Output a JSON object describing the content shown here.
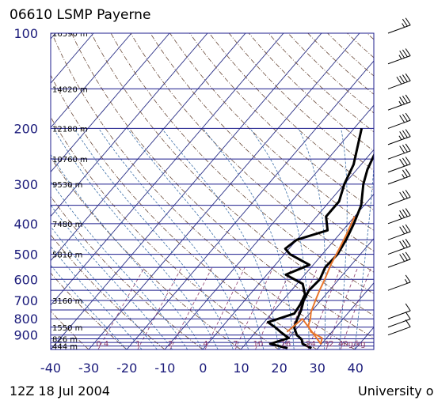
{
  "chart_data": {
    "type": "line",
    "title": "06610 LSMP Payerne",
    "footer_left": "12Z 18 Jul 2004",
    "footer_right": "University o",
    "pressure_ticks": [
      "100",
      "200",
      "300",
      "400",
      "500",
      "600",
      "700",
      "800",
      "900"
    ],
    "temp_ticks": [
      "-40",
      "-30",
      "-20",
      "-10",
      "0",
      "10",
      "20",
      "30",
      "40"
    ],
    "xlim": [
      -40,
      40
    ],
    "ylim_hpa": [
      100,
      1000
    ],
    "pressure_levels": [
      100,
      150,
      200,
      250,
      300,
      350,
      400,
      450,
      500,
      550,
      600,
      650,
      700,
      750,
      800,
      850,
      900,
      925,
      950,
      975,
      1000
    ],
    "height_labels": [
      {
        "p": 100,
        "text": "16590 m"
      },
      {
        "p": 150,
        "text": "14020 m"
      },
      {
        "p": 200,
        "text": "12180 m"
      },
      {
        "p": 250,
        "text": "10760 m"
      },
      {
        "p": 300,
        "text": "9530 m"
      },
      {
        "p": 400,
        "text": "7480 m"
      },
      {
        "p": 500,
        "text": "5810 m"
      },
      {
        "p": 700,
        "text": "3160 m"
      },
      {
        "p": 850,
        "text": "1550 m"
      },
      {
        "p": 925,
        "text": "826 m"
      },
      {
        "p": 975,
        "text": "444 m"
      }
    ],
    "mixing_ratio_labels": [
      "0.4",
      "1",
      "2",
      "4",
      "7",
      "10",
      "16",
      "24",
      "32",
      "40g/kg"
    ],
    "series": [
      {
        "name": "",
        "color": "#000000",
        "values": [
          {
            "p": 100,
            "t": 25.8
          },
          {
            "p": 110,
            "t": 25.2
          },
          {
            "p": 120,
            "t": 21.4
          },
          {
            "p": 140,
            "t": 18.0
          },
          {
            "p": 160,
            "t": 16.5
          },
          {
            "p": 185,
            "t": 8.0
          },
          {
            "p": 200,
            "t": -1.0
          },
          {
            "p": 230,
            "t": 0.5
          },
          {
            "p": 270,
            "t": 2.8
          },
          {
            "p": 300,
            "t": 5.0
          },
          {
            "p": 350,
            "t": 9.2
          },
          {
            "p": 400,
            "t": 11.4
          },
          {
            "p": 450,
            "t": 13.0
          },
          {
            "p": 500,
            "t": 14.0
          },
          {
            "p": 550,
            "t": 13.7
          },
          {
            "p": 600,
            "t": 15.0
          },
          {
            "p": 650,
            "t": 14.6
          },
          {
            "p": 700,
            "t": 15.5
          },
          {
            "p": 750,
            "t": 17.0
          },
          {
            "p": 800,
            "t": 18.0
          },
          {
            "p": 850,
            "t": 19.0
          },
          {
            "p": 900,
            "t": 21.5
          },
          {
            "p": 930,
            "t": 23.8
          },
          {
            "p": 960,
            "t": 25.0
          },
          {
            "p": 990,
            "t": 28.3
          }
        ]
      },
      {
        "name": "",
        "color": "#000000",
        "values": [
          {
            "p": 200,
            "t": -8.0
          },
          {
            "p": 260,
            "t": -2.0
          },
          {
            "p": 300,
            "t": 0.0
          },
          {
            "p": 340,
            "t": 2.5
          },
          {
            "p": 380,
            "t": 2.5
          },
          {
            "p": 420,
            "t": 6.0
          },
          {
            "p": 450,
            "t": 0.0
          },
          {
            "p": 480,
            "t": -1.0
          },
          {
            "p": 500,
            "t": 1.5
          },
          {
            "p": 540,
            "t": 9.0
          },
          {
            "p": 580,
            "t": 5.0
          },
          {
            "p": 620,
            "t": 11.5
          },
          {
            "p": 670,
            "t": 14.5
          },
          {
            "p": 720,
            "t": 15.5
          },
          {
            "p": 770,
            "t": 16.0
          },
          {
            "p": 820,
            "t": 11.0
          },
          {
            "p": 850,
            "t": 14.0
          },
          {
            "p": 880,
            "t": 16.5
          },
          {
            "p": 920,
            "t": 20.0
          },
          {
            "p": 960,
            "t": 16.5
          },
          {
            "p": 990,
            "t": 22.0
          }
        ]
      },
      {
        "name": "",
        "color": "#e8762c",
        "values": [
          {
            "p": 380,
            "t": 10.0
          },
          {
            "p": 430,
            "t": 11.8
          },
          {
            "p": 480,
            "t": 13.2
          },
          {
            "p": 540,
            "t": 14.6
          },
          {
            "p": 600,
            "t": 16.3
          },
          {
            "p": 650,
            "t": 17.4
          },
          {
            "p": 700,
            "t": 18.6
          },
          {
            "p": 760,
            "t": 20.0
          },
          {
            "p": 800,
            "t": 21.4
          },
          {
            "p": 840,
            "t": 22.4
          },
          {
            "p": 880,
            "t": 24.5
          },
          {
            "p": 920,
            "t": 28.8
          },
          {
            "p": 960,
            "t": 29.8
          },
          {
            "p": 800,
            "t": 19.3
          },
          {
            "p": 880,
            "t": 18.2
          }
        ]
      }
    ],
    "wind_barbs": [
      {
        "p": 100,
        "dir": 250,
        "kt": 25
      },
      {
        "p": 125,
        "dir": 250,
        "kt": 35
      },
      {
        "p": 150,
        "dir": 250,
        "kt": 40
      },
      {
        "p": 175,
        "dir": 255,
        "kt": 35
      },
      {
        "p": 200,
        "dir": 255,
        "kt": 30
      },
      {
        "p": 225,
        "dir": 250,
        "kt": 35
      },
      {
        "p": 250,
        "dir": 250,
        "kt": 30
      },
      {
        "p": 275,
        "dir": 250,
        "kt": 30
      },
      {
        "p": 300,
        "dir": 255,
        "kt": 25
      },
      {
        "p": 350,
        "dir": 250,
        "kt": 30
      },
      {
        "p": 400,
        "dir": 255,
        "kt": 35
      },
      {
        "p": 450,
        "dir": 250,
        "kt": 30
      },
      {
        "p": 500,
        "dir": 255,
        "kt": 30
      },
      {
        "p": 550,
        "dir": 250,
        "kt": 30
      },
      {
        "p": 650,
        "dir": 240,
        "kt": 15
      },
      {
        "p": 800,
        "dir": 220,
        "kt": 10
      },
      {
        "p": 850,
        "dir": 215,
        "kt": 10
      },
      {
        "p": 900,
        "dir": 230,
        "kt": 10
      }
    ],
    "colors": {
      "isobar": "#1c1c8c",
      "isotherm": "#2a2f86",
      "dry_adiabat": "#6b4b3a",
      "moist_adiabat": "#3c6fa8",
      "mixing_ratio": "#8a3a6a",
      "axis_text": "#1a1a7a",
      "parcel": "#e8762c"
    }
  }
}
